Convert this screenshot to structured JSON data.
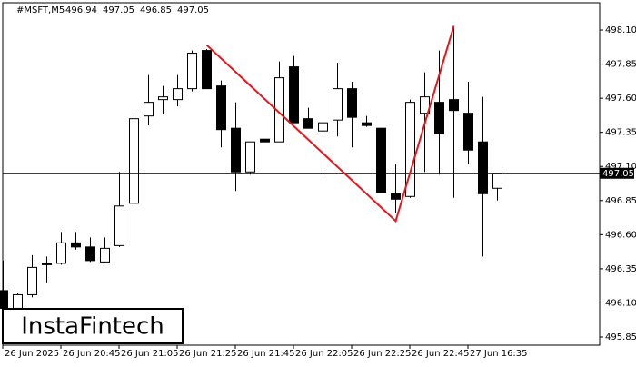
{
  "chart_data": {
    "type": "candlestick",
    "symbol": "#MSFT,M5",
    "logo": "InstaFintech",
    "categories": [
      "26 Jun 2025",
      null,
      null,
      null,
      "26 Jun 20:45",
      null,
      null,
      null,
      "26 Jun 21:05",
      null,
      null,
      null,
      "26 Jun 21:25",
      null,
      null,
      null,
      "26 Jun 21:45",
      null,
      null,
      null,
      "26 Jun 22:05",
      null,
      null,
      null,
      "26 Jun 22:25",
      null,
      null,
      null,
      "26 Jun 22:45",
      null,
      null,
      null,
      "27 Jun 16:35",
      null,
      null
    ],
    "open": [
      496.19,
      496.06,
      496.16,
      496.39,
      496.39,
      496.54,
      496.51,
      496.4,
      496.52,
      496.83,
      497.47,
      497.59,
      497.59,
      497.67,
      497.95,
      497.69,
      497.38,
      497.06,
      497.3,
      497.28,
      497.83,
      497.45,
      497.36,
      497.44,
      497.67,
      497.42,
      497.38,
      496.9,
      496.88,
      497.49,
      497.57,
      497.59,
      497.49,
      497.28,
      496.94
    ],
    "high": [
      496.41,
      496.17,
      496.45,
      496.44,
      496.62,
      496.62,
      496.58,
      496.58,
      497.06,
      497.47,
      497.77,
      497.69,
      497.77,
      497.95,
      497.96,
      497.73,
      497.57,
      497.28,
      497.3,
      497.87,
      497.91,
      497.53,
      497.42,
      497.86,
      497.72,
      497.47,
      497.38,
      497.12,
      497.59,
      497.79,
      497.95,
      498.12,
      497.72,
      497.61,
      497.05
    ],
    "low": [
      496.05,
      496.03,
      496.14,
      496.25,
      496.38,
      496.49,
      496.4,
      496.39,
      496.51,
      496.78,
      497.4,
      497.48,
      497.54,
      497.65,
      497.67,
      497.24,
      496.92,
      497.04,
      497.28,
      497.28,
      497.42,
      497.38,
      497.04,
      497.32,
      497.24,
      497.39,
      496.91,
      496.76,
      496.87,
      497.06,
      497.04,
      496.87,
      497.12,
      496.44,
      496.85
    ],
    "close": [
      496.06,
      496.16,
      496.36,
      496.38,
      496.54,
      496.51,
      496.41,
      496.5,
      496.81,
      497.45,
      497.57,
      497.61,
      497.67,
      497.93,
      497.67,
      497.37,
      497.06,
      497.28,
      497.28,
      497.75,
      497.42,
      497.38,
      497.42,
      497.67,
      497.46,
      497.4,
      496.91,
      496.86,
      497.57,
      497.61,
      497.34,
      497.51,
      497.22,
      496.9,
      497.05
    ],
    "up_color": "#ffffff",
    "down_color": "#000000",
    "price_line": 497.05,
    "pattern": {
      "color": "#e8141a",
      "x": [
        14,
        27,
        31
      ],
      "y": [
        497.99,
        496.7,
        498.13
      ]
    },
    "ylim": [
      495.79,
      498.32
    ],
    "yticks": [
      {
        "value": 498.1,
        "label": "498.10"
      },
      497.85,
      {
        "value": 497.6,
        "label": "497.60"
      },
      497.35,
      {
        "value": 497.1,
        "label": "497.10"
      },
      496.85,
      {
        "value": 496.6,
        "label": "496.60"
      },
      496.35,
      {
        "value": 496.1,
        "label": "496.10"
      },
      495.85
    ]
  }
}
